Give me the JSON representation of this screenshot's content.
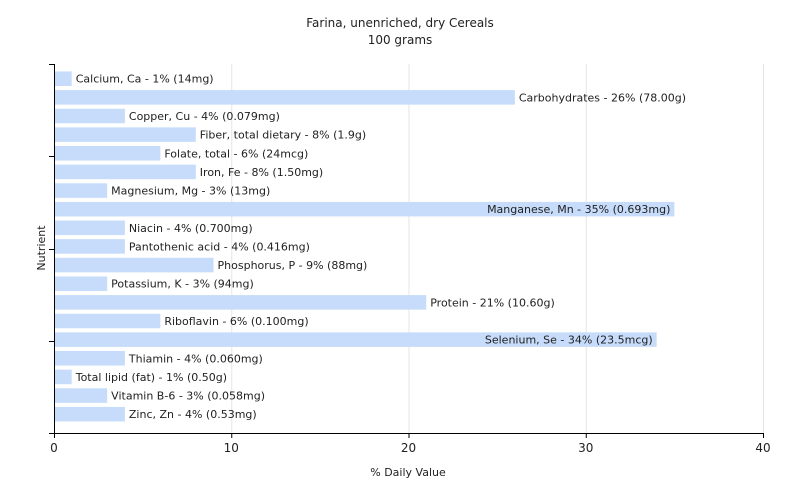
{
  "chart_data": {
    "type": "bar",
    "orientation": "horizontal",
    "title": "Farina, unenriched, dry Cereals",
    "subtitle": "100 grams",
    "xlabel": "% Daily Value",
    "ylabel": "Nutrient",
    "xlim": [
      0,
      40
    ],
    "xticks": [
      0,
      10,
      20,
      30,
      40
    ],
    "grid": true,
    "bar_color": "#c6dcfa",
    "categories": [
      "Calcium, Ca",
      "Carbohydrates",
      "Copper, Cu",
      "Fiber, total dietary",
      "Folate, total",
      "Iron, Fe",
      "Magnesium, Mg",
      "Manganese, Mn",
      "Niacin",
      "Pantothenic acid",
      "Phosphorus, P",
      "Potassium, K",
      "Protein",
      "Riboflavin",
      "Selenium, Se",
      "Thiamin",
      "Total lipid (fat)",
      "Vitamin B-6",
      "Zinc, Zn"
    ],
    "values": [
      1,
      26,
      4,
      8,
      6,
      8,
      3,
      35,
      4,
      4,
      9,
      3,
      21,
      6,
      34,
      4,
      1,
      3,
      4
    ],
    "labels": [
      "Calcium, Ca - 1% (14mg)",
      "Carbohydrates - 26% (78.00g)",
      "Copper, Cu - 4% (0.079mg)",
      "Fiber, total dietary - 8% (1.9g)",
      "Folate, total - 6% (24mcg)",
      "Iron, Fe - 8% (1.50mg)",
      "Magnesium, Mg - 3% (13mg)",
      "Manganese, Mn - 35% (0.693mg)",
      "Niacin - 4% (0.700mg)",
      "Pantothenic acid - 4% (0.416mg)",
      "Phosphorus, P - 9% (88mg)",
      "Potassium, K - 3% (94mg)",
      "Protein - 21% (10.60g)",
      "Riboflavin - 6% (0.100mg)",
      "Selenium, Se - 34% (23.5mcg)",
      "Thiamin - 4% (0.060mg)",
      "Total lipid (fat) - 1% (0.50g)",
      "Vitamin B-6 - 3% (0.058mg)",
      "Zinc, Zn - 4% (0.53mg)"
    ]
  }
}
